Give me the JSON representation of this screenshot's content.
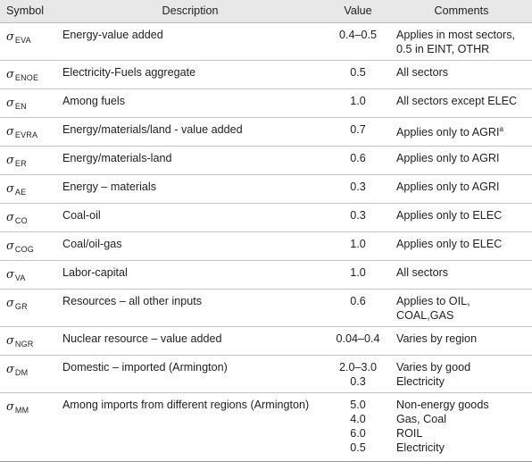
{
  "headers": {
    "symbol": "Symbol",
    "description": "Description",
    "value": "Value",
    "comments": "Comments"
  },
  "rows": [
    {
      "sigma": "σ",
      "sub": "EVA",
      "description": "Energy-value added",
      "values": [
        "0.4–0.5"
      ],
      "comments": [
        "Applies in most sectors,",
        "0.5 in EINT, OTHR"
      ]
    },
    {
      "sigma": "σ",
      "sub": "ENOE",
      "description": "Electricity-Fuels aggregate",
      "values": [
        "0.5"
      ],
      "comments": [
        "All sectors"
      ]
    },
    {
      "sigma": "σ",
      "sub": "EN",
      "description": "Among fuels",
      "values": [
        "1.0"
      ],
      "comments": [
        "All sectors except ELEC"
      ]
    },
    {
      "sigma": "σ",
      "sub": "EVRA",
      "description": "Energy/materials/land - value added",
      "values": [
        "0.7"
      ],
      "comments": [
        "Applies only to AGRI"
      ],
      "footnote": "a"
    },
    {
      "sigma": "σ",
      "sub": "ER",
      "description": "Energy/materials-land",
      "values": [
        "0.6"
      ],
      "comments": [
        "Applies only to AGRI"
      ]
    },
    {
      "sigma": "σ",
      "sub": "AE",
      "description": "Energy – materials",
      "values": [
        "0.3"
      ],
      "comments": [
        "Applies only to AGRI"
      ]
    },
    {
      "sigma": "σ",
      "sub": "CO",
      "description": "Coal-oil",
      "values": [
        "0.3"
      ],
      "comments": [
        "Applies only to ELEC"
      ]
    },
    {
      "sigma": "σ",
      "sub": "COG",
      "description": "Coal/oil-gas",
      "values": [
        "1.0"
      ],
      "comments": [
        "Applies only to ELEC"
      ]
    },
    {
      "sigma": "σ",
      "sub": "VA",
      "description": "Labor-capital",
      "values": [
        "1.0"
      ],
      "comments": [
        "All sectors"
      ]
    },
    {
      "sigma": "σ",
      "sub": "GR",
      "description": "Resources – all other inputs",
      "values": [
        "0.6"
      ],
      "comments": [
        "Applies to OIL, COAL,GAS"
      ]
    },
    {
      "sigma": "σ",
      "sub": "NGR",
      "description": "Nuclear resource – value added",
      "values": [
        "0.04–0.4"
      ],
      "comments": [
        "Varies by region"
      ]
    },
    {
      "sigma": "σ",
      "sub": "DM",
      "description": "Domestic – imported (Armington)",
      "values": [
        "2.0–3.0",
        "0.3"
      ],
      "comments": [
        "Varies by good",
        "Electricity"
      ]
    },
    {
      "sigma": "σ",
      "sub": "MM",
      "description": "Among imports from different regions (Armington)",
      "values": [
        "5.0",
        "4.0",
        "6.0",
        "0.5"
      ],
      "comments": [
        "Non-energy goods",
        "Gas, Coal",
        "ROIL",
        "Electricity"
      ]
    }
  ]
}
